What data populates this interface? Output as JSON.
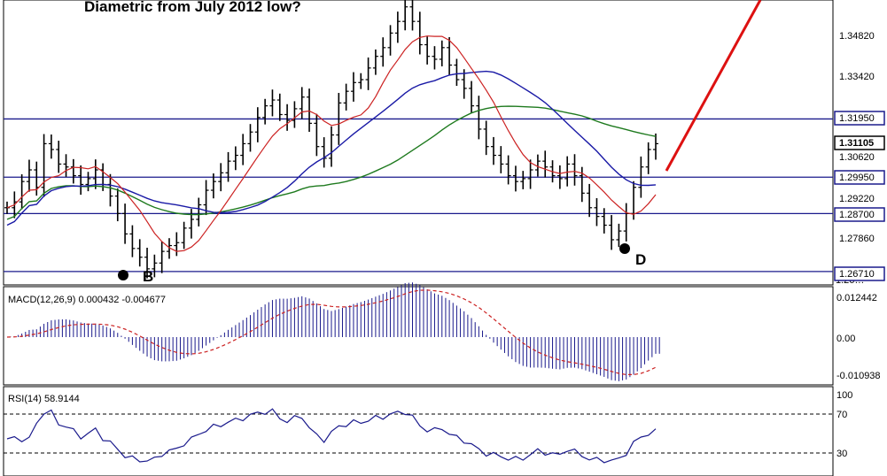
{
  "title": "Diametric from July 2012 low?",
  "colors": {
    "background": "#ffffff",
    "bars": "#000000",
    "ma_fast": "#cc2222",
    "ma_mid": "#1a1aa6",
    "ma_slow": "#1e7a1e",
    "levels": "#1a1a8c",
    "macd_hist": "#1a1a8c",
    "macd_signal": "#cc2222",
    "rsi": "#1a1a8c",
    "arrow": "#dd1111",
    "highlight_box": "#1a1a8c"
  },
  "price_axis": {
    "ticks": [
      "1.34820",
      "1.33420",
      "1.30620",
      "1.29220",
      "1.27860"
    ],
    "highlighted": [
      "1.31950",
      "1.29950",
      "1.28700",
      "1.26710"
    ],
    "current": "1.31105",
    "partial_bottom": "1.26…"
  },
  "points": {
    "B": "B",
    "D": "D"
  },
  "macd": {
    "label": "MACD(12,26,9) 0.000432 -0.004677",
    "ticks": [
      "0.012442",
      "0.00",
      "-0.010938"
    ]
  },
  "rsi": {
    "label": "RSI(14) 58.9144",
    "ticks": [
      "100",
      "70",
      "30"
    ]
  },
  "chart_data": [
    {
      "type": "ohlc",
      "title": "Diametric from July 2012 low?",
      "y_axis_ticks": [
        1.3482,
        1.3342,
        1.3062,
        1.2922,
        1.2786
      ],
      "levels": [
        1.3195,
        1.2995,
        1.287,
        1.2671
      ],
      "last_value": 1.31105,
      "pattern_points": [
        "B",
        "D"
      ],
      "series_close": [
        1.289,
        1.291,
        1.298,
        1.302,
        1.296,
        1.311,
        1.309,
        1.304,
        1.303,
        1.3,
        1.297,
        1.299,
        1.302,
        1.297,
        1.293,
        1.287,
        1.28,
        1.275,
        1.272,
        1.268,
        1.27,
        1.274,
        1.276,
        1.277,
        1.282,
        1.285,
        1.29,
        1.295,
        1.298,
        1.301,
        1.305,
        1.307,
        1.311,
        1.315,
        1.32,
        1.324,
        1.326,
        1.321,
        1.319,
        1.323,
        1.327,
        1.318,
        1.31,
        1.306,
        1.314,
        1.325,
        1.329,
        1.332,
        1.333,
        1.337,
        1.341,
        1.344,
        1.349,
        1.353,
        1.358,
        1.353,
        1.345,
        1.341,
        1.34,
        1.344,
        1.338,
        1.333,
        1.33,
        1.324,
        1.316,
        1.31,
        1.307,
        1.304,
        1.3,
        1.298,
        1.299,
        1.302,
        1.305,
        1.303,
        1.3,
        1.299,
        1.304,
        1.3,
        1.294,
        1.289,
        1.286,
        1.283,
        1.278,
        1.281,
        1.287,
        1.296,
        1.303,
        1.309,
        1.311
      ]
    },
    {
      "type": "bar",
      "title": "MACD(12,26,9)",
      "macd_value": 0.000432,
      "signal_value": -0.004677,
      "ylim": [
        -0.010938,
        0.012442
      ]
    },
    {
      "type": "line",
      "title": "RSI(14)",
      "last_value": 58.9144,
      "ylim": [
        0,
        100
      ],
      "reference_levels": [
        70,
        30
      ]
    }
  ]
}
